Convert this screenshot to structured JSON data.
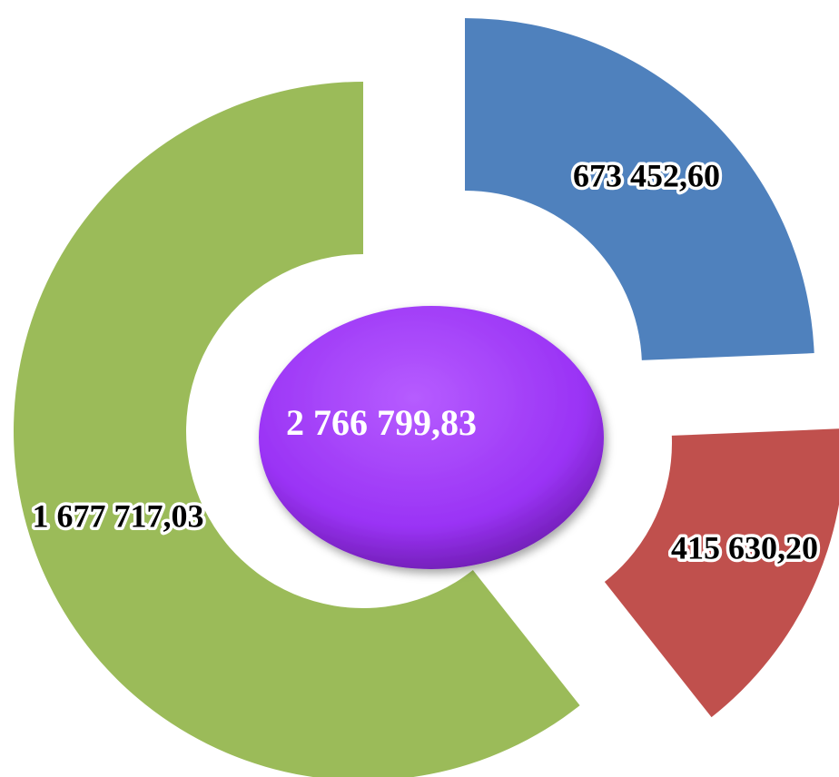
{
  "chart_data": {
    "type": "donut",
    "series": [
      {
        "name": null,
        "values": [
          673452.6,
          415630.2,
          1677717.03
        ],
        "value_labels": [
          "673 452,60",
          "415 630,20",
          "1 677 717,03"
        ],
        "colors": [
          "#4f81bd",
          "#c0504d",
          "#9bbb59"
        ]
      }
    ],
    "center_label": "2 766 799,83",
    "center_color": "#a23cff"
  }
}
